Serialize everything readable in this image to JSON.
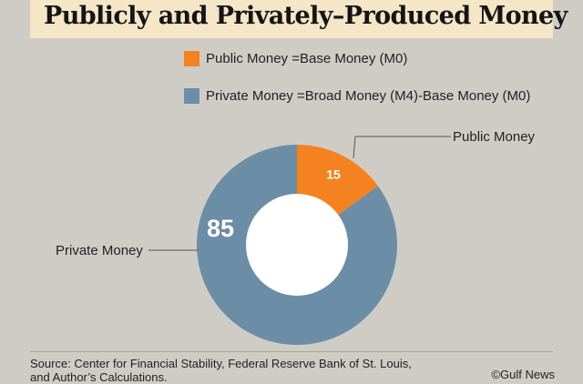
{
  "header": {
    "title": "Publicly and Privately–Produced Money"
  },
  "legend": {
    "items": [
      {
        "label": "Public Money =Base Money (M0)",
        "color": "#f58220"
      },
      {
        "label": "Private Money =Broad Money (M4)-Base Money (M0)",
        "color": "#6b8ea6"
      }
    ]
  },
  "chart_data": {
    "type": "pie",
    "style": "donut",
    "slices": [
      {
        "label": "Public Money",
        "value": 15,
        "value_label": "15",
        "color": "#f58220"
      },
      {
        "label": "Private Money",
        "value": 85,
        "value_label": "85",
        "color": "#6b8ea6"
      }
    ],
    "center_color": "#ffffff"
  },
  "footer": {
    "source": "Source: Center for Financial Stability, Federal Reserve Bank of St. Louis, and Author’s Calculations.",
    "credit": "©Gulf News"
  }
}
